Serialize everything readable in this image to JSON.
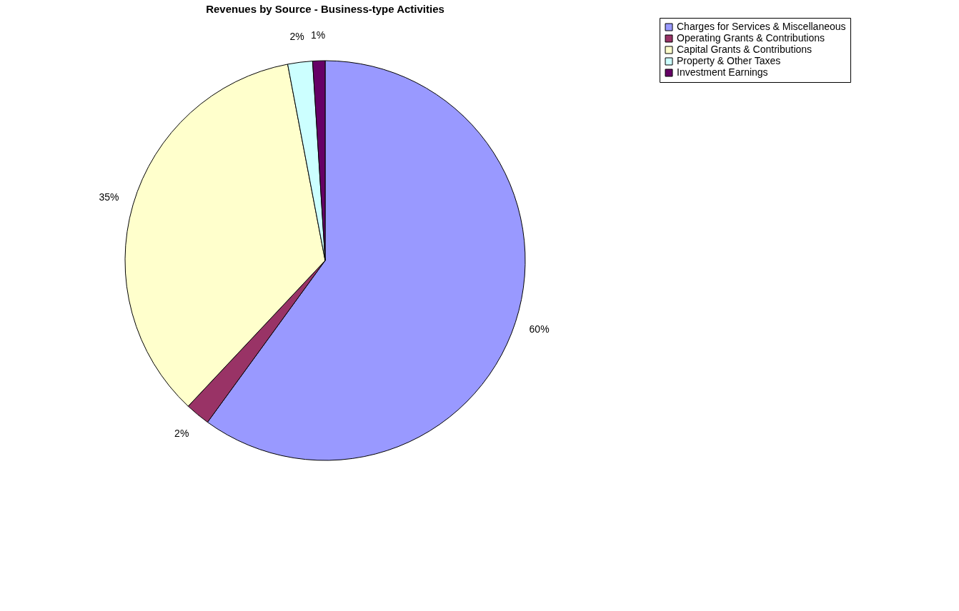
{
  "chart_data": {
    "type": "pie",
    "title": "Revenues by Source - Business-type Activities",
    "categories": [
      "Charges for Services & Miscellaneous",
      "Operating Grants & Contributions",
      "Capital Grants & Contributions",
      "Property & Other Taxes",
      "Investment Earnings"
    ],
    "values": [
      60,
      2,
      35,
      2,
      1
    ],
    "value_labels": [
      "60%",
      "2%",
      "35%",
      "2%",
      "1%"
    ],
    "colors": [
      "#9999ff",
      "#993366",
      "#ffffcc",
      "#ccffff",
      "#660066"
    ],
    "legend": "right"
  }
}
